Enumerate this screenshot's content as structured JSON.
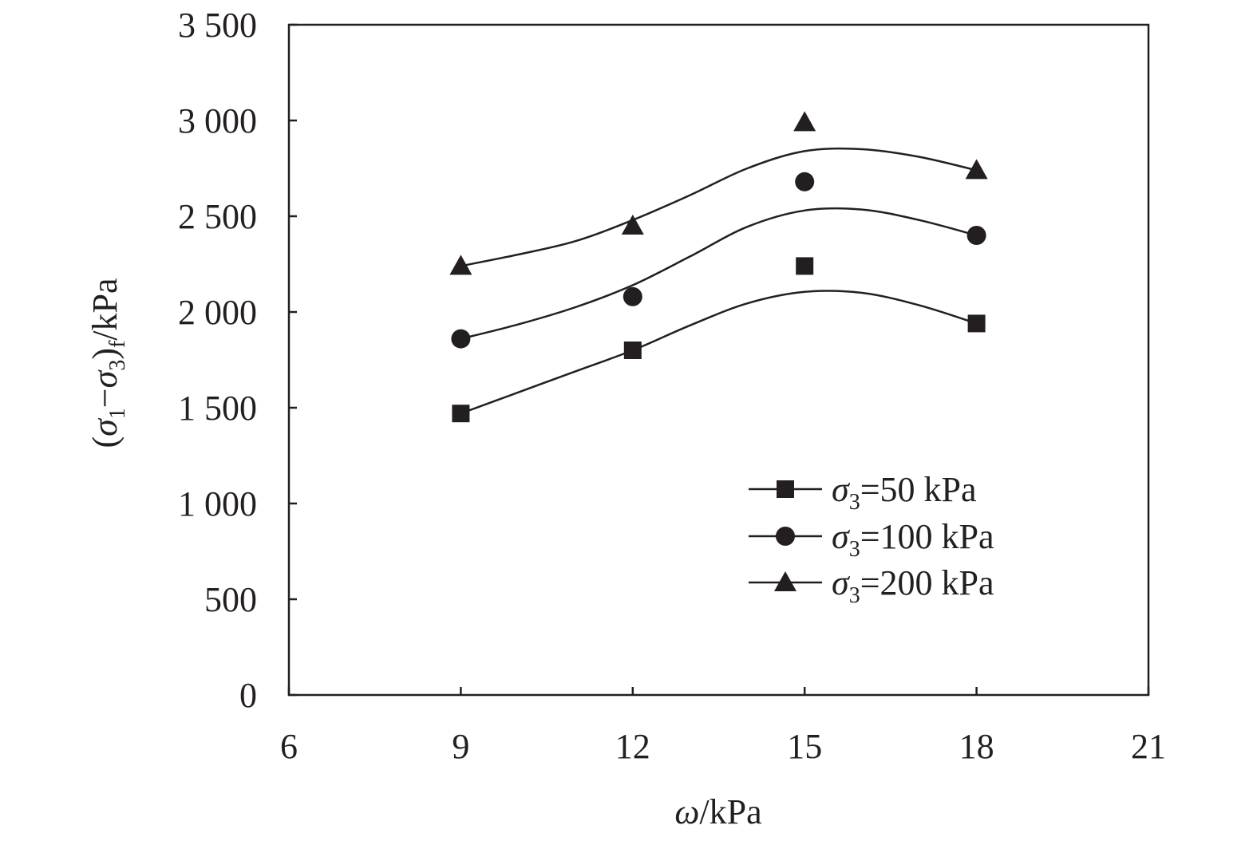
{
  "chart_data": {
    "type": "scatter",
    "xlabel": {
      "symbol": "ω",
      "unit": "/kPa"
    },
    "ylabel": {
      "open": "(",
      "s1": "σ",
      "sub1": "1",
      "minus": "−",
      "s3": "σ",
      "sub3": "3",
      "close": ")",
      "subf": "f",
      "unit": "/kPa"
    },
    "xlim": [
      6,
      21
    ],
    "ylim": [
      0,
      3500
    ],
    "x_ticks": [
      6,
      9,
      12,
      15,
      18,
      21
    ],
    "x_tick_labels": [
      "6",
      "9",
      "12",
      "15",
      "18",
      "21"
    ],
    "y_ticks": [
      0,
      500,
      1000,
      1500,
      2000,
      2500,
      3000,
      3500
    ],
    "y_tick_labels": [
      "0",
      "500",
      "1 000",
      "1 500",
      "2 000",
      "2 500",
      "3 000",
      "3 500"
    ],
    "grid": false,
    "legend_position": "bottom-right",
    "series": [
      {
        "name": "σ3=50 kPa",
        "legend": {
          "sym": "σ",
          "sub": "3",
          "rest": "=50 kPa"
        },
        "marker": "square",
        "x": [
          9,
          12,
          15,
          18
        ],
        "y": [
          1470,
          1800,
          2240,
          1940
        ],
        "fit_x": [
          9,
          10,
          11,
          12,
          13,
          14,
          15,
          16,
          17,
          18
        ],
        "fit_y": [
          1470,
          1580,
          1690,
          1800,
          1930,
          2045,
          2105,
          2100,
          2035,
          1940
        ]
      },
      {
        "name": "σ3=100 kPa",
        "legend": {
          "sym": "σ",
          "sub": "3",
          "rest": "=100 kPa"
        },
        "marker": "circle",
        "x": [
          9,
          12,
          15,
          18
        ],
        "y": [
          1860,
          2080,
          2680,
          2400
        ],
        "fit_x": [
          9,
          10,
          11,
          12,
          13,
          14,
          15,
          16,
          17,
          18
        ],
        "fit_y": [
          1860,
          1935,
          2025,
          2140,
          2290,
          2445,
          2530,
          2535,
          2480,
          2400
        ]
      },
      {
        "name": "σ3=200 kPa",
        "legend": {
          "sym": "σ",
          "sub": "3",
          "rest": "=200 kPa"
        },
        "marker": "triangle",
        "x": [
          9,
          12,
          15,
          18
        ],
        "y": [
          2240,
          2450,
          2990,
          2740
        ],
        "fit_x": [
          9,
          10,
          11,
          12,
          13,
          14,
          15,
          16,
          17,
          18
        ],
        "fit_y": [
          2240,
          2300,
          2370,
          2480,
          2610,
          2750,
          2840,
          2850,
          2810,
          2740
        ]
      }
    ]
  }
}
